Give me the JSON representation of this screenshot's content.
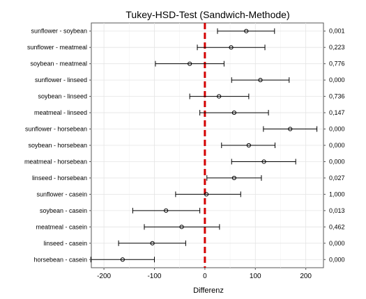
{
  "chart_data": {
    "type": "scatter",
    "title": "Tukey-HSD-Test (Sandwich-Methode)",
    "xlabel": "Differenz",
    "ylabel": "",
    "xlim": [
      -225,
      235
    ],
    "xticks": [
      -200,
      -100,
      0,
      100,
      200
    ],
    "grid": true,
    "reference_line": {
      "x": 0,
      "color": "#d40000",
      "style": "dashed"
    },
    "comparisons": [
      {
        "label": "sunflower - soybean",
        "estimate": 82,
        "lower": 25,
        "upper": 138,
        "p": "0,001"
      },
      {
        "label": "sunflower - meatmeal",
        "estimate": 52,
        "lower": -15,
        "upper": 119,
        "p": "0,223"
      },
      {
        "label": "soybean - meatmeal",
        "estimate": -30,
        "lower": -98,
        "upper": 38,
        "p": "0,776"
      },
      {
        "label": "sunflower - linseed",
        "estimate": 110,
        "lower": 53,
        "upper": 167,
        "p": "0,000"
      },
      {
        "label": "soybean - linseed",
        "estimate": 28,
        "lower": -30,
        "upper": 87,
        "p": "0,736"
      },
      {
        "label": "meatmeal - linseed",
        "estimate": 58,
        "lower": -10,
        "upper": 126,
        "p": "0,147"
      },
      {
        "label": "sunflower - horsebean",
        "estimate": 169,
        "lower": 116,
        "upper": 222,
        "p": "0,000"
      },
      {
        "label": "soybean - horsebean",
        "estimate": 87,
        "lower": 33,
        "upper": 139,
        "p": "0,000"
      },
      {
        "label": "meatmeal - horsebean",
        "estimate": 117,
        "lower": 53,
        "upper": 180,
        "p": "0,000"
      },
      {
        "label": "linseed - horsebean",
        "estimate": 58,
        "lower": 4,
        "upper": 112,
        "p": "0,027"
      },
      {
        "label": "sunflower - casein",
        "estimate": 3,
        "lower": -58,
        "upper": 71,
        "p": "1,000"
      },
      {
        "label": "soybean - casein",
        "estimate": -77,
        "lower": -143,
        "upper": -10,
        "p": "0,013"
      },
      {
        "label": "meatmeal - casein",
        "estimate": -46,
        "lower": -120,
        "upper": 29,
        "p": "0,462"
      },
      {
        "label": "linseed - casein",
        "estimate": -104,
        "lower": -171,
        "upper": -38,
        "p": "0,000"
      },
      {
        "label": "horsebean - casein",
        "estimate": -163,
        "lower": -226,
        "upper": -100,
        "p": "0,000"
      }
    ]
  }
}
